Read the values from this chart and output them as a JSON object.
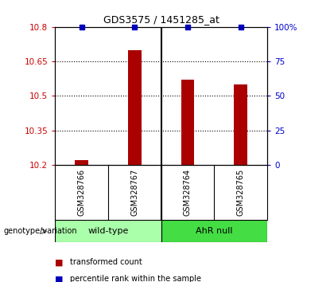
{
  "title": "GDS3575 / 1451285_at",
  "samples": [
    "GSM328766",
    "GSM328767",
    "GSM328764",
    "GSM328765"
  ],
  "bar_values": [
    10.22,
    10.7,
    10.57,
    10.55
  ],
  "percentile_values": [
    100,
    100,
    100,
    100
  ],
  "ylim_left": [
    10.2,
    10.8
  ],
  "ylim_right": [
    0,
    100
  ],
  "yticks_left": [
    10.2,
    10.35,
    10.5,
    10.65,
    10.8
  ],
  "ytick_labels_left": [
    "10.2",
    "10.35",
    "10.5",
    "10.65",
    "10.8"
  ],
  "yticks_right": [
    0,
    25,
    50,
    75,
    100
  ],
  "ytick_labels_right": [
    "0",
    "25",
    "50",
    "75",
    "100%"
  ],
  "grid_values": [
    10.35,
    10.5,
    10.65
  ],
  "bar_color": "#aa0000",
  "dot_color": "#0000bb",
  "bar_bottom": 10.2,
  "groups": [
    {
      "label": "wild-type",
      "color": "#aaffaa"
    },
    {
      "label": "AhR null",
      "color": "#44dd44"
    }
  ],
  "group_label": "genotype/variation",
  "legend_items": [
    {
      "color": "#aa0000",
      "label": "transformed count"
    },
    {
      "color": "#0000bb",
      "label": "percentile rank within the sample"
    }
  ],
  "bg_color": "#ffffff",
  "sample_box_color": "#cccccc",
  "x_positions": [
    0,
    1,
    2,
    3
  ]
}
